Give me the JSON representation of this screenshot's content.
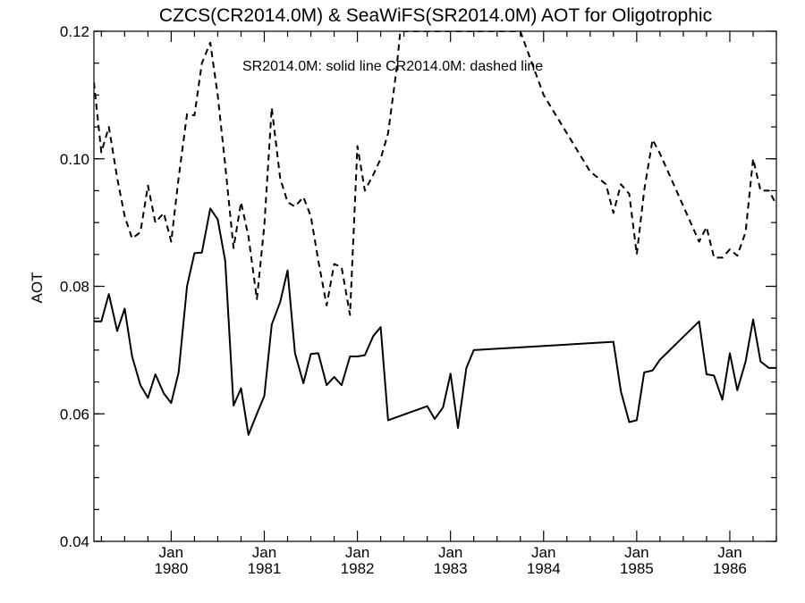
{
  "chart_data": {
    "type": "line",
    "title": "CZCS(CR2014.0M) & SeaWiFS(SR2014.0M)  AOT for Oligotrophic",
    "xlabel": "",
    "ylabel": "AOT",
    "annotation": "SR2014.0M: solid line   CR2014.0M: dashed line",
    "xlim": [
      1979.17,
      1986.5
    ],
    "ylim": [
      0.04,
      0.12
    ],
    "x_ticks": [
      {
        "value": 1980,
        "line1": "Jan",
        "line2": "1980"
      },
      {
        "value": 1981,
        "line1": "Jan",
        "line2": "1981"
      },
      {
        "value": 1982,
        "line1": "Jan",
        "line2": "1982"
      },
      {
        "value": 1983,
        "line1": "Jan",
        "line2": "1983"
      },
      {
        "value": 1984,
        "line1": "Jan",
        "line2": "1984"
      },
      {
        "value": 1985,
        "line1": "Jan",
        "line2": "1985"
      },
      {
        "value": 1986,
        "line1": "Jan",
        "line2": "1986"
      }
    ],
    "y_ticks": [
      {
        "value": 0.04,
        "label": "0.04"
      },
      {
        "value": 0.06,
        "label": "0.06"
      },
      {
        "value": 0.08,
        "label": "0.08"
      },
      {
        "value": 0.1,
        "label": "0.10"
      },
      {
        "value": 0.12,
        "label": "0.12"
      }
    ],
    "series": [
      {
        "style": "solid",
        "x": [
          1979.17,
          1979.25,
          1979.33,
          1979.42,
          1979.5,
          1979.58,
          1979.67,
          1979.75,
          1979.83,
          1979.92,
          1980.0,
          1980.08,
          1980.17,
          1980.25,
          1980.33,
          1980.42,
          1980.5,
          1980.58,
          1980.67,
          1980.75,
          1980.83,
          1980.92,
          1981.0,
          1981.08,
          1981.17,
          1981.25,
          1981.33,
          1981.42,
          1981.5,
          1981.58,
          1981.67,
          1981.75,
          1981.83,
          1981.92,
          1982.0,
          1982.08,
          1982.17,
          1982.25,
          1982.33,
          1982.75,
          1982.83,
          1982.92,
          1983.0,
          1983.08,
          1983.17,
          1983.25,
          1984.75,
          1984.83,
          1984.92,
          1985.0,
          1985.08,
          1985.17,
          1985.25,
          1985.67,
          1985.75,
          1985.83,
          1985.92,
          1986.0,
          1986.08,
          1986.17,
          1986.25,
          1986.33,
          1986.42,
          1986.5
        ],
        "y": [
          0.0745,
          0.0745,
          0.0788,
          0.073,
          0.0765,
          0.069,
          0.0645,
          0.0625,
          0.0662,
          0.0632,
          0.0617,
          0.0665,
          0.08,
          0.0852,
          0.0853,
          0.0922,
          0.0905,
          0.084,
          0.0613,
          0.064,
          0.0567,
          0.06,
          0.0628,
          0.074,
          0.0775,
          0.0825,
          0.0695,
          0.0648,
          0.0694,
          0.0695,
          0.0645,
          0.0658,
          0.0645,
          0.069,
          0.069,
          0.0692,
          0.0722,
          0.0736,
          0.059,
          0.0612,
          0.0592,
          0.061,
          0.0663,
          0.0578,
          0.0672,
          0.07,
          0.0713,
          0.0635,
          0.0587,
          0.059,
          0.0665,
          0.0668,
          0.0685,
          0.0745,
          0.0662,
          0.066,
          0.0622,
          0.0695,
          0.0637,
          0.0682,
          0.0748,
          0.0682,
          0.0672,
          0.0672
        ]
      },
      {
        "style": "dashed",
        "x": [
          1979.17,
          1979.25,
          1979.33,
          1979.42,
          1979.5,
          1979.58,
          1979.67,
          1979.75,
          1979.83,
          1979.92,
          1980.0,
          1980.08,
          1980.17,
          1980.25,
          1980.33,
          1980.42,
          1980.5,
          1980.58,
          1980.67,
          1980.75,
          1980.83,
          1980.92,
          1981.0,
          1981.08,
          1981.17,
          1981.25,
          1981.33,
          1981.42,
          1981.5,
          1981.58,
          1981.67,
          1981.75,
          1981.83,
          1981.92,
          1982.0,
          1982.08,
          1982.17,
          1982.25,
          1982.33,
          1982.42,
          1982.46,
          1983.75,
          1984.0,
          1984.25,
          1984.5,
          1984.67,
          1984.75,
          1984.83,
          1984.92,
          1985.0,
          1985.08,
          1985.17,
          1985.25,
          1985.67,
          1985.75,
          1985.83,
          1985.92,
          1986.0,
          1986.08,
          1986.17,
          1986.25,
          1986.33,
          1986.42,
          1986.5
        ],
        "y": [
          0.112,
          0.101,
          0.105,
          0.097,
          0.091,
          0.0875,
          0.0885,
          0.0958,
          0.09,
          0.0915,
          0.087,
          0.097,
          0.107,
          0.1068,
          0.115,
          0.1182,
          0.11,
          0.099,
          0.086,
          0.0932,
          0.0878,
          0.078,
          0.0895,
          0.108,
          0.097,
          0.0932,
          0.0925,
          0.094,
          0.091,
          0.084,
          0.077,
          0.0835,
          0.083,
          0.0755,
          0.102,
          0.095,
          0.0975,
          0.1,
          0.104,
          0.114,
          0.12,
          0.12,
          0.11,
          0.104,
          0.098,
          0.096,
          0.0915,
          0.096,
          0.0945,
          0.085,
          0.095,
          0.103,
          0.1008,
          0.087,
          0.0893,
          0.0845,
          0.0845,
          0.0858,
          0.0848,
          0.0885,
          0.1,
          0.095,
          0.095,
          0.0928
        ]
      }
    ]
  }
}
